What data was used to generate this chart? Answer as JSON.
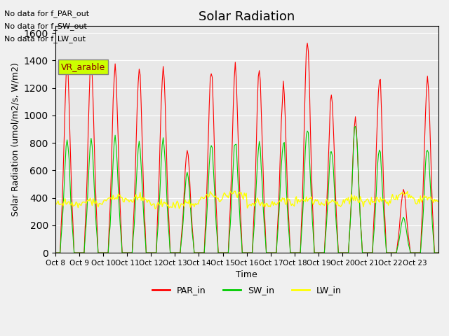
{
  "title": "Solar Radiation",
  "ylabel": "Solar Radiation (umol/m2/s, W/m2)",
  "xlabel": "Time",
  "ylim": [
    0,
    1650
  ],
  "background_color": "#e8e8e8",
  "annotations": [
    "No data for f_PAR_out",
    "No data for f_SW_out",
    "No data for f_LW_out"
  ],
  "vr_arable_label": "VR_arable",
  "xtick_labels": [
    "Oct 8",
    "Oct 9",
    "Oct 10",
    "Oct 11",
    "Oct 12",
    "Oct 13",
    "Oct 14",
    "Oct 15",
    "Oct 16",
    "Oct 17",
    "Oct 18",
    "Oct 19",
    "Oct 20",
    "Oct 21",
    "Oct 22",
    "Oct 23"
  ],
  "par_color": "red",
  "sw_color": "#00cc00",
  "lw_color": "yellow",
  "par_peaks": [
    1370,
    1380,
    1360,
    1330,
    1370,
    760,
    1330,
    1330,
    1310,
    1210,
    1550,
    1130,
    960,
    1290,
    460,
    1270
  ],
  "sw_peaks": [
    820,
    820,
    820,
    800,
    820,
    580,
    800,
    800,
    790,
    800,
    920,
    770,
    930,
    760,
    260,
    770
  ],
  "lw_base_day": [
    355,
    355,
    390,
    380,
    340,
    345,
    395,
    415,
    350,
    360,
    380,
    350,
    375,
    365,
    410,
    375
  ],
  "n_days": 16
}
